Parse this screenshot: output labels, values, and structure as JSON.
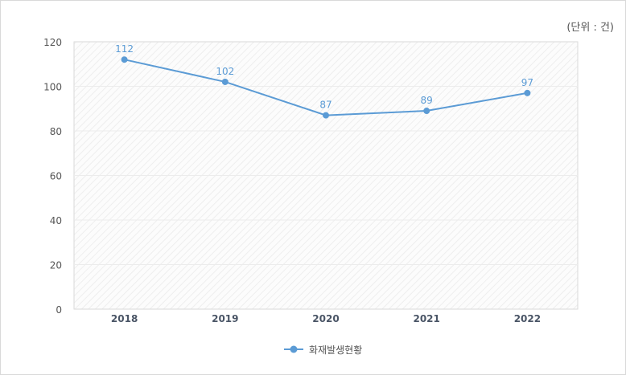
{
  "chart_data": {
    "type": "line",
    "unit_note": "(단위 : 건)",
    "categories": [
      "2018",
      "2019",
      "2020",
      "2021",
      "2022"
    ],
    "series": [
      {
        "name": "화재발생현황",
        "values": [
          112,
          102,
          87,
          89,
          97
        ],
        "color": "#5b9bd5"
      }
    ],
    "ylim": [
      0,
      120
    ],
    "yticks": [
      0,
      20,
      40,
      60,
      80,
      100,
      120
    ],
    "grid": true,
    "legend": "bottom"
  }
}
